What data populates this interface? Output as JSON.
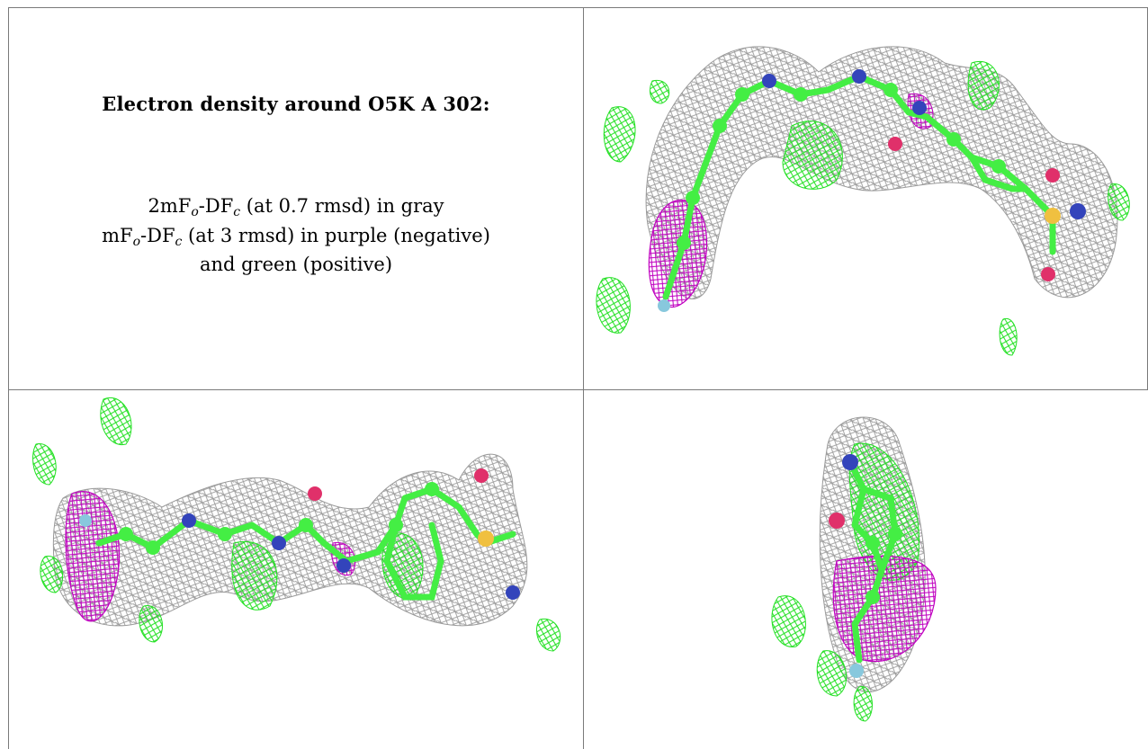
{
  "caption": {
    "title": "Electron density around O5K A 302:",
    "line1_pre": "2mF",
    "line1_sub1": "o",
    "line1_mid": "-DF",
    "line1_sub2": "c",
    "line1_post": " (at 0.7 rmsd) in gray",
    "line2_pre": "mF",
    "line2_sub1": "o",
    "line2_mid": "-DF",
    "line2_sub2": "c",
    "line2_post": " (at 3 rmsd) in purple (negative)",
    "line3": "and green (positive)"
  },
  "colors": {
    "mesh_2fofc": "#9a9a9a",
    "mesh_negative": "#c000c0",
    "mesh_positive": "#22e022",
    "carbon": "#44ee44",
    "nitrogen": "#3344bb",
    "oxygen": "#e0306a",
    "sulfur": "#f0c040",
    "fluorine": "#88c8dd"
  },
  "panels": [
    {
      "name": "density-view-top-right"
    },
    {
      "name": "density-view-bottom-left"
    },
    {
      "name": "density-view-bottom-right"
    }
  ]
}
